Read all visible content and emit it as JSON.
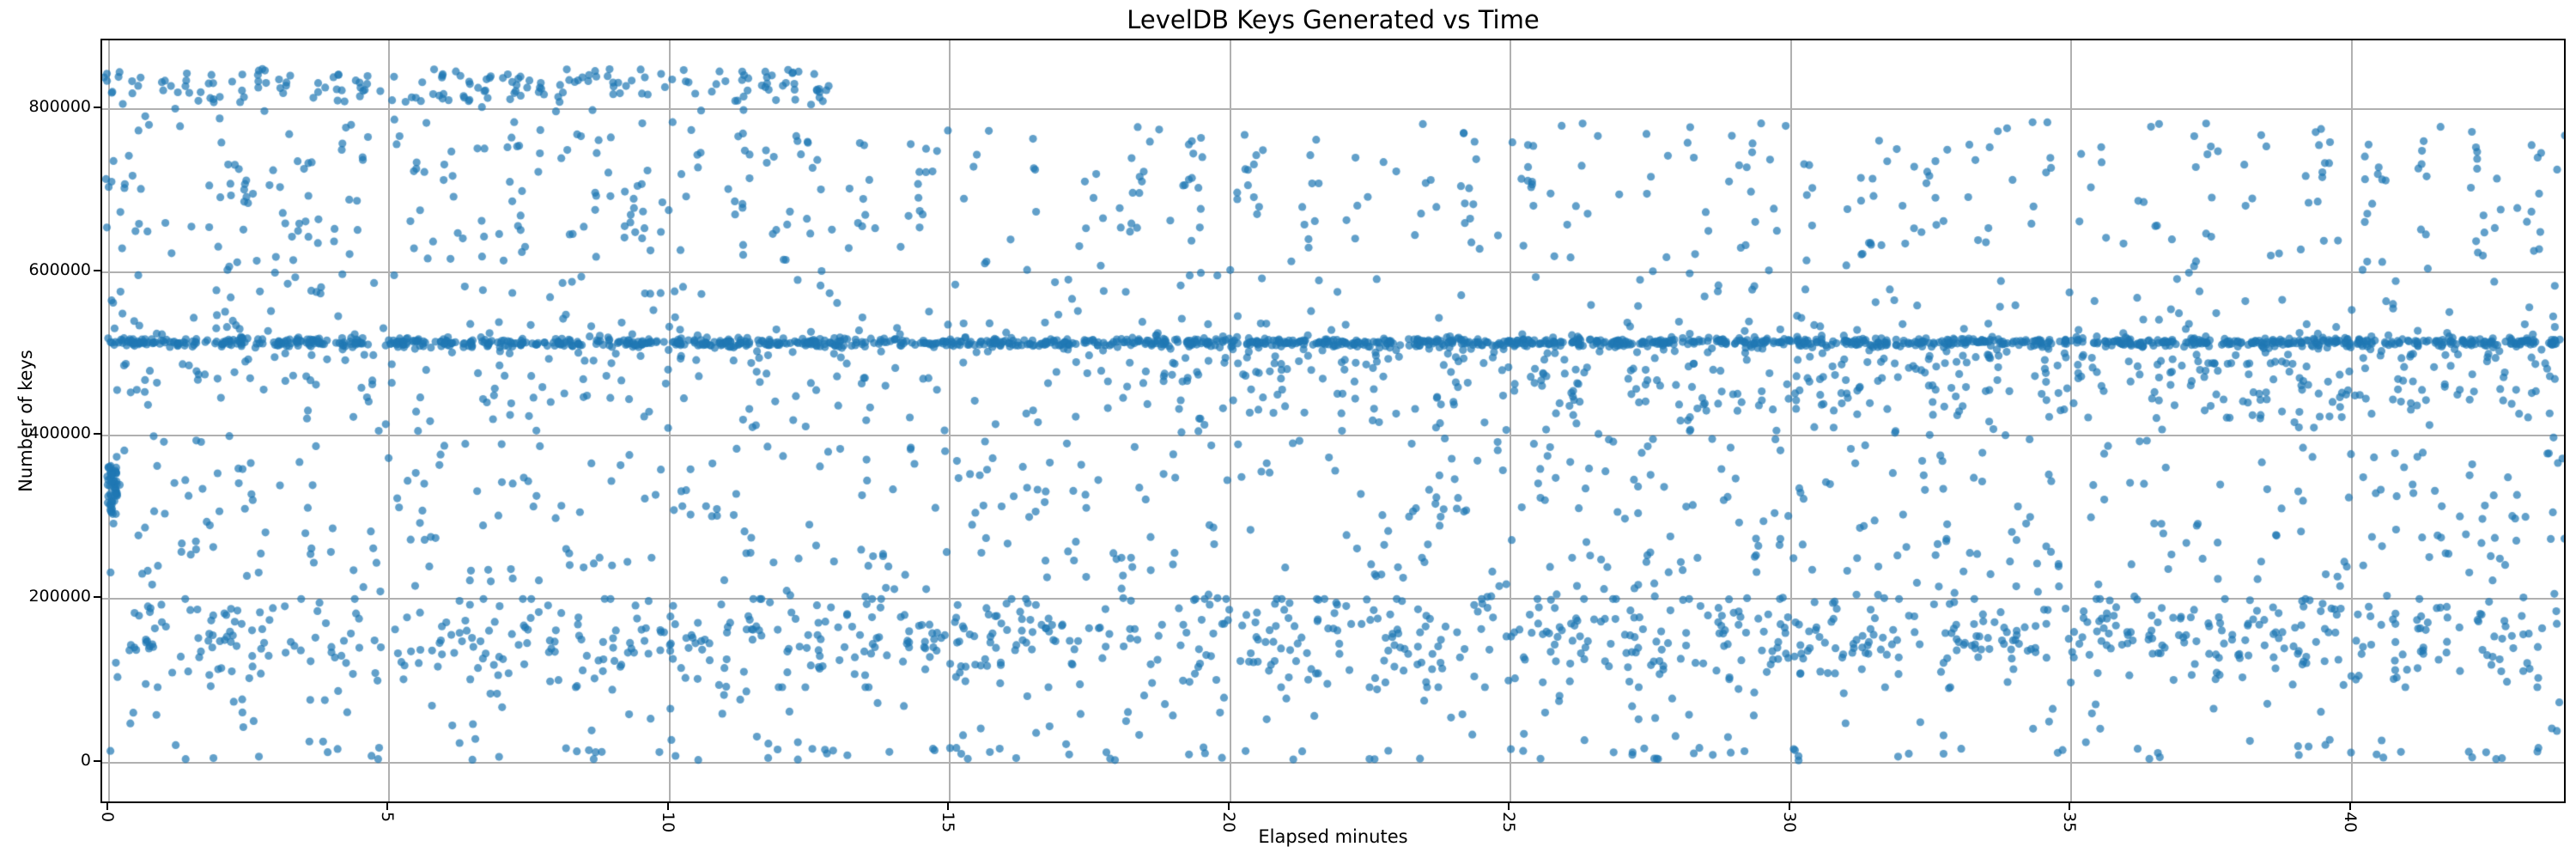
{
  "chart_data": {
    "type": "scatter",
    "title": "LevelDB Keys Generated vs Time",
    "xlabel": "Elapsed minutes",
    "ylabel": "Number of keys",
    "xlim": [
      -0.12,
      43.85
    ],
    "ylim": [
      -52000,
      884000
    ],
    "xticks": [
      0,
      5,
      10,
      15,
      20,
      25,
      30,
      35,
      40
    ],
    "yticks": [
      0,
      200000,
      400000,
      600000,
      800000
    ],
    "grid": true,
    "legend": null,
    "style": {
      "point_color": "#1f77b4",
      "point_alpha": 0.7,
      "point_radius": 4.6,
      "grid_color": "#b0b0b0",
      "spine_color": "#000000",
      "text_color": "#000000",
      "seed": 20240731
    },
    "components": [
      {
        "name": "steady-band",
        "kind": "hband",
        "count": 1500,
        "x": [
          0,
          43.75
        ],
        "y_center": 512000,
        "y_sigma": 2800,
        "gap_period": 2.9,
        "gap_width": 0.12
      },
      {
        "name": "band-fuzz",
        "kind": "hband",
        "count": 130,
        "x": [
          0,
          43.75
        ],
        "y_center": 510000,
        "y_sigma": 16000
      },
      {
        "name": "top-clusters-early",
        "kind": "columns",
        "x_start": 0.08,
        "x_end": 12.8,
        "x_step": 0.45,
        "x_jitter": 0.09,
        "pts_min": 3,
        "pts_max": 9,
        "y": [
          806000,
          847000
        ],
        "y_mode": "uniform"
      },
      {
        "name": "upper-trail-early",
        "kind": "columns",
        "x_start": 0.2,
        "x_end": 13,
        "x_step": 0.5,
        "x_jitter": 0.12,
        "pts_min": 1,
        "pts_max": 6,
        "y": [
          560000,
          805000
        ],
        "y_mode": "uniform"
      },
      {
        "name": "high-columns",
        "kind": "columns",
        "x_start": 0.4,
        "x_end": 43.7,
        "x_step": 1.0,
        "x_jitter": 0.22,
        "pts_min": 5,
        "pts_max": 14,
        "y": [
          618000,
          782000
        ],
        "y_mode": "uniform"
      },
      {
        "name": "mid-streaks",
        "kind": "columns",
        "x_start": 0.6,
        "x_end": 43.7,
        "x_step": 1.0,
        "x_jitter": 0.28,
        "pts_min": 3,
        "pts_max": 12,
        "y": [
          200000,
          505000
        ],
        "y_mode": "uniform"
      },
      {
        "name": "low-columns",
        "kind": "columns",
        "x_start": 0.15,
        "x_end": 43.7,
        "x_step": 0.52,
        "x_jitter": 0.13,
        "pts_min": 4,
        "pts_max": 16,
        "y": [
          90000,
          198000
        ],
        "y_mode": "gauss",
        "y_center": 150000,
        "y_sigma": 30000
      },
      {
        "name": "uniform-scatter",
        "kind": "uniform",
        "count": 750,
        "x": [
          0,
          43.75
        ],
        "y": [
          8000,
          545000
        ]
      },
      {
        "name": "above-band-sparse",
        "kind": "uniform",
        "count": 120,
        "x": [
          0,
          43.75
        ],
        "y": [
          528000,
          618000
        ]
      },
      {
        "name": "below-band-curtain",
        "kind": "uniform",
        "count": 90,
        "x": [
          0,
          43.75
        ],
        "y": [
          432000,
          504000
        ]
      },
      {
        "name": "below-band-curtain-right",
        "kind": "uniform",
        "count": 210,
        "x": [
          19,
          43.75
        ],
        "y": [
          420000,
          504000
        ]
      },
      {
        "name": "start-blob",
        "kind": "blob",
        "count": 55,
        "x": [
          0.0,
          0.18
        ],
        "y": [
          302000,
          362000
        ]
      },
      {
        "name": "bottom-row",
        "kind": "uniform",
        "count": 85,
        "x": [
          0,
          43.75
        ],
        "y": [
          0,
          16000
        ]
      }
    ]
  }
}
